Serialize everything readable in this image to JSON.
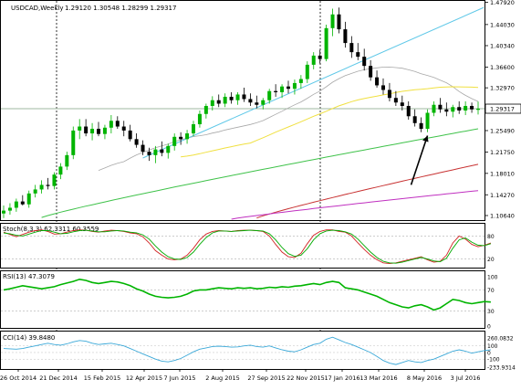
{
  "chart_data": [
    {
      "type": "candlestick",
      "title": "USDCAD,Weekly",
      "ohlc_text": "1.29120 1.30548 1.28299 1.29317",
      "current_price": 1.29317,
      "ylim": [
        1.1,
        1.48
      ],
      "y_ticks": [
        1.4792,
        1.4403,
        1.4034,
        1.366,
        1.3297,
        1.29317,
        1.2549,
        1.2175,
        1.1801,
        1.1427,
        1.1064
      ],
      "x_ticks": [
        "26 Oct 2014",
        "21 Dec 2014",
        "15 Feb 2015",
        "12 Apr 2015",
        "7 Jun 2015",
        "2 Aug 2015",
        "27 Sep 2015",
        "22 Nov 2015",
        "17 Jan 2016",
        "13 Mar 2016",
        "8 May 2016",
        "3 Jul 2016"
      ],
      "candles": [
        {
          "o": 1.11,
          "h": 1.124,
          "l": 1.102,
          "c": 1.115
        },
        {
          "o": 1.115,
          "h": 1.128,
          "l": 1.108,
          "c": 1.12
        },
        {
          "o": 1.12,
          "h": 1.136,
          "l": 1.113,
          "c": 1.131
        },
        {
          "o": 1.131,
          "h": 1.142,
          "l": 1.124,
          "c": 1.126
        },
        {
          "o": 1.126,
          "h": 1.15,
          "l": 1.12,
          "c": 1.145
        },
        {
          "o": 1.145,
          "h": 1.16,
          "l": 1.138,
          "c": 1.152
        },
        {
          "o": 1.152,
          "h": 1.168,
          "l": 1.145,
          "c": 1.16
        },
        {
          "o": 1.16,
          "h": 1.172,
          "l": 1.152,
          "c": 1.158
        },
        {
          "o": 1.158,
          "h": 1.182,
          "l": 1.152,
          "c": 1.178
        },
        {
          "o": 1.178,
          "h": 1.198,
          "l": 1.17,
          "c": 1.192
        },
        {
          "o": 1.192,
          "h": 1.218,
          "l": 1.186,
          "c": 1.212
        },
        {
          "o": 1.212,
          "h": 1.262,
          "l": 1.205,
          "c": 1.255
        },
        {
          "o": 1.255,
          "h": 1.275,
          "l": 1.24,
          "c": 1.262
        },
        {
          "o": 1.262,
          "h": 1.275,
          "l": 1.245,
          "c": 1.25
        },
        {
          "o": 1.25,
          "h": 1.268,
          "l": 1.238,
          "c": 1.258
        },
        {
          "o": 1.258,
          "h": 1.27,
          "l": 1.245,
          "c": 1.249
        },
        {
          "o": 1.249,
          "h": 1.265,
          "l": 1.24,
          "c": 1.26
        },
        {
          "o": 1.26,
          "h": 1.282,
          "l": 1.25,
          "c": 1.272
        },
        {
          "o": 1.272,
          "h": 1.28,
          "l": 1.258,
          "c": 1.262
        },
        {
          "o": 1.262,
          "h": 1.272,
          "l": 1.245,
          "c": 1.255
        },
        {
          "o": 1.255,
          "h": 1.265,
          "l": 1.236,
          "c": 1.24
        },
        {
          "o": 1.24,
          "h": 1.25,
          "l": 1.225,
          "c": 1.23
        },
        {
          "o": 1.23,
          "h": 1.238,
          "l": 1.212,
          "c": 1.218
        },
        {
          "o": 1.218,
          "h": 1.225,
          "l": 1.202,
          "c": 1.212
        },
        {
          "o": 1.212,
          "h": 1.228,
          "l": 1.198,
          "c": 1.222
        },
        {
          "o": 1.222,
          "h": 1.236,
          "l": 1.21,
          "c": 1.216
        },
        {
          "o": 1.216,
          "h": 1.232,
          "l": 1.206,
          "c": 1.228
        },
        {
          "o": 1.228,
          "h": 1.25,
          "l": 1.22,
          "c": 1.244
        },
        {
          "o": 1.244,
          "h": 1.252,
          "l": 1.23,
          "c": 1.24
        },
        {
          "o": 1.24,
          "h": 1.256,
          "l": 1.232,
          "c": 1.25
        },
        {
          "o": 1.25,
          "h": 1.272,
          "l": 1.245,
          "c": 1.266
        },
        {
          "o": 1.266,
          "h": 1.29,
          "l": 1.26,
          "c": 1.284
        },
        {
          "o": 1.284,
          "h": 1.302,
          "l": 1.276,
          "c": 1.298
        },
        {
          "o": 1.298,
          "h": 1.315,
          "l": 1.29,
          "c": 1.308
        },
        {
          "o": 1.308,
          "h": 1.318,
          "l": 1.296,
          "c": 1.302
        },
        {
          "o": 1.302,
          "h": 1.32,
          "l": 1.296,
          "c": 1.314
        },
        {
          "o": 1.314,
          "h": 1.322,
          "l": 1.302,
          "c": 1.308
        },
        {
          "o": 1.308,
          "h": 1.322,
          "l": 1.3,
          "c": 1.318
        },
        {
          "o": 1.318,
          "h": 1.33,
          "l": 1.305,
          "c": 1.31
        },
        {
          "o": 1.31,
          "h": 1.32,
          "l": 1.298,
          "c": 1.304
        },
        {
          "o": 1.304,
          "h": 1.316,
          "l": 1.294,
          "c": 1.3
        },
        {
          "o": 1.3,
          "h": 1.312,
          "l": 1.292,
          "c": 1.308
        },
        {
          "o": 1.308,
          "h": 1.328,
          "l": 1.302,
          "c": 1.324
        },
        {
          "o": 1.324,
          "h": 1.336,
          "l": 1.314,
          "c": 1.322
        },
        {
          "o": 1.322,
          "h": 1.336,
          "l": 1.312,
          "c": 1.332
        },
        {
          "o": 1.332,
          "h": 1.342,
          "l": 1.32,
          "c": 1.328
        },
        {
          "o": 1.328,
          "h": 1.344,
          "l": 1.318,
          "c": 1.338
        },
        {
          "o": 1.338,
          "h": 1.352,
          "l": 1.328,
          "c": 1.345
        },
        {
          "o": 1.345,
          "h": 1.376,
          "l": 1.338,
          "c": 1.37
        },
        {
          "o": 1.37,
          "h": 1.392,
          "l": 1.362,
          "c": 1.386
        },
        {
          "o": 1.386,
          "h": 1.396,
          "l": 1.372,
          "c": 1.38
        },
        {
          "o": 1.38,
          "h": 1.44,
          "l": 1.376,
          "c": 1.434
        },
        {
          "o": 1.434,
          "h": 1.468,
          "l": 1.42,
          "c": 1.458
        },
        {
          "o": 1.458,
          "h": 1.47,
          "l": 1.425,
          "c": 1.432
        },
        {
          "o": 1.432,
          "h": 1.445,
          "l": 1.4,
          "c": 1.408
        },
        {
          "o": 1.408,
          "h": 1.42,
          "l": 1.382,
          "c": 1.392
        },
        {
          "o": 1.392,
          "h": 1.408,
          "l": 1.378,
          "c": 1.384
        },
        {
          "o": 1.384,
          "h": 1.398,
          "l": 1.36,
          "c": 1.368
        },
        {
          "o": 1.368,
          "h": 1.378,
          "l": 1.342,
          "c": 1.348
        },
        {
          "o": 1.348,
          "h": 1.36,
          "l": 1.33,
          "c": 1.334
        },
        {
          "o": 1.334,
          "h": 1.346,
          "l": 1.318,
          "c": 1.326
        },
        {
          "o": 1.326,
          "h": 1.338,
          "l": 1.306,
          "c": 1.312
        },
        {
          "o": 1.312,
          "h": 1.324,
          "l": 1.298,
          "c": 1.304
        },
        {
          "o": 1.304,
          "h": 1.316,
          "l": 1.29,
          "c": 1.298
        },
        {
          "o": 1.298,
          "h": 1.306,
          "l": 1.274,
          "c": 1.28
        },
        {
          "o": 1.28,
          "h": 1.292,
          "l": 1.262,
          "c": 1.268
        },
        {
          "o": 1.268,
          "h": 1.278,
          "l": 1.252,
          "c": 1.258
        },
        {
          "o": 1.258,
          "h": 1.292,
          "l": 1.252,
          "c": 1.286
        },
        {
          "o": 1.286,
          "h": 1.306,
          "l": 1.28,
          "c": 1.3
        },
        {
          "o": 1.3,
          "h": 1.312,
          "l": 1.286,
          "c": 1.292
        },
        {
          "o": 1.292,
          "h": 1.304,
          "l": 1.28,
          "c": 1.288
        },
        {
          "o": 1.288,
          "h": 1.3,
          "l": 1.278,
          "c": 1.296
        },
        {
          "o": 1.296,
          "h": 1.306,
          "l": 1.284,
          "c": 1.29
        },
        {
          "o": 1.29,
          "h": 1.306,
          "l": 1.282,
          "c": 1.298
        },
        {
          "o": 1.298,
          "h": 1.304,
          "l": 1.286,
          "c": 1.292
        },
        {
          "o": 1.2912,
          "h": 1.30548,
          "l": 1.28299,
          "c": 1.29317
        }
      ],
      "colors": {
        "bull": "#00b400",
        "bear": "#000000",
        "current_line": "#9fb8a0",
        "sma_gray": "#a8a8a8",
        "sma_yellow": "#f0e040",
        "sma_green": "#3fc24a",
        "sma_red": "#c83232",
        "sma_magenta": "#c030c0",
        "trendline": "#5fc8e8",
        "arrow": "#000000"
      }
    },
    {
      "type": "line",
      "title": "Stoch(8,3,3) 62.3311 60.3559",
      "y_ticks": [
        80,
        20
      ],
      "ylim": [
        0,
        100
      ],
      "series": [
        {
          "values": [
            90,
            84,
            78,
            84,
            90,
            94,
            96,
            92,
            85,
            86,
            90,
            94,
            96,
            95,
            92,
            90,
            93,
            95,
            94,
            92,
            88,
            86,
            78,
            62,
            42,
            30,
            20,
            18,
            20,
            30,
            48,
            70,
            85,
            92,
            94,
            93,
            92,
            94,
            95,
            95,
            94,
            92,
            80,
            58,
            38,
            26,
            24,
            35,
            60,
            82,
            92,
            96,
            96,
            92,
            90,
            80,
            62,
            45,
            30,
            18,
            10,
            8,
            10,
            14,
            18,
            22,
            26,
            18,
            12,
            14,
            30,
            62,
            80,
            72,
            58,
            52,
            56,
            62
          ]
        },
        {
          "values": [
            88,
            86,
            82,
            80,
            85,
            90,
            94,
            94,
            90,
            86,
            87,
            91,
            94,
            95,
            93,
            91,
            91,
            93,
            94,
            93,
            90,
            88,
            83,
            72,
            54,
            38,
            26,
            20,
            19,
            24,
            38,
            58,
            76,
            88,
            93,
            93,
            92,
            93,
            94,
            95,
            94,
            93,
            86,
            70,
            50,
            34,
            27,
            30,
            47,
            70,
            86,
            93,
            95,
            94,
            91,
            85,
            72,
            55,
            38,
            24,
            14,
            10,
            9,
            12,
            16,
            20,
            24,
            20,
            15,
            13,
            22,
            48,
            70,
            75,
            64,
            56,
            55,
            60
          ]
        }
      ],
      "colors": {
        "main": "#d02020",
        "signal": "#00aa00"
      }
    },
    {
      "type": "line",
      "title": "RSI(13) 47.3079",
      "y_ticks": [
        100,
        70,
        30,
        0
      ],
      "ylim": [
        0,
        100
      ],
      "series": [
        {
          "values": [
            70,
            72,
            75,
            78,
            76,
            74,
            72,
            74,
            76,
            80,
            83,
            86,
            90,
            88,
            84,
            82,
            84,
            86,
            85,
            82,
            78,
            72,
            68,
            62,
            58,
            56,
            55,
            56,
            58,
            62,
            68,
            70,
            70,
            72,
            74,
            73,
            72,
            74,
            73,
            74,
            72,
            73,
            75,
            74,
            76,
            75,
            77,
            78,
            80,
            82,
            80,
            84,
            86,
            84,
            74,
            72,
            70,
            66,
            62,
            58,
            52,
            46,
            42,
            38,
            36,
            40,
            42,
            38,
            32,
            36,
            44,
            52,
            50,
            46,
            44,
            46,
            48,
            47
          ]
        }
      ],
      "colors": {
        "rsi": "#00b400"
      }
    },
    {
      "type": "line",
      "title": "CCI(14) 39.8480",
      "y_ticks": [
        260.0832,
        100,
        0,
        -100,
        -233.9314
      ],
      "ylim": [
        -233.9314,
        260.0832
      ],
      "series": [
        {
          "values": [
            60,
            55,
            50,
            60,
            80,
            100,
            120,
            140,
            120,
            110,
            130,
            160,
            180,
            170,
            140,
            120,
            130,
            140,
            120,
            100,
            60,
            20,
            -20,
            -60,
            -100,
            -130,
            -140,
            -120,
            -90,
            -40,
            10,
            50,
            70,
            90,
            95,
            90,
            80,
            85,
            100,
            110,
            90,
            80,
            100,
            70,
            40,
            20,
            10,
            40,
            80,
            120,
            140,
            200,
            230,
            190,
            150,
            120,
            80,
            40,
            0,
            -60,
            -120,
            -160,
            -180,
            -150,
            -120,
            -140,
            -150,
            -120,
            -100,
            -60,
            -20,
            20,
            40,
            20,
            -10,
            10,
            30,
            40
          ]
        }
      ],
      "colors": {
        "cci": "#3aa8d8"
      }
    }
  ]
}
